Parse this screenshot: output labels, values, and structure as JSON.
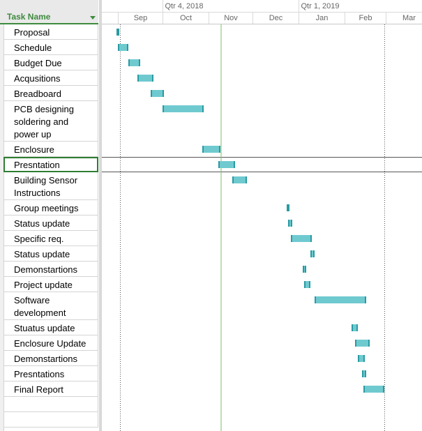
{
  "grid": {
    "header": "Task Name",
    "tasks": [
      {
        "name": "Proposal",
        "lines": 1,
        "start": "2018-08-31",
        "finish": "2018-09-02"
      },
      {
        "name": "Schedule",
        "lines": 1,
        "start": "2018-09-01",
        "finish": "2018-09-08"
      },
      {
        "name": "Budget Due",
        "lines": 1,
        "start": "2018-09-08",
        "finish": "2018-09-16"
      },
      {
        "name": "Acqusitions",
        "lines": 1,
        "start": "2018-09-14",
        "finish": "2018-09-25"
      },
      {
        "name": "Breadboard",
        "lines": 1,
        "start": "2018-09-23",
        "finish": "2018-10-02"
      },
      {
        "name": "PCB designing\nsoldering and\npower up",
        "lines": 3,
        "start": "2018-10-01",
        "finish": "2018-10-29"
      },
      {
        "name": "Enclosure",
        "lines": 1,
        "start": "2018-10-28",
        "finish": "2018-11-09"
      },
      {
        "name": "Presntation",
        "lines": 1,
        "start": "2018-11-08",
        "finish": "2018-11-19",
        "selected": true
      },
      {
        "name": "Building Sensor\nInstructions",
        "lines": 2,
        "start": "2018-11-17",
        "finish": "2018-11-27"
      },
      {
        "name": "Group meetings",
        "lines": 1,
        "start": "2018-12-24",
        "finish": "2018-12-26"
      },
      {
        "name": "Status update",
        "lines": 1,
        "start": "2018-12-25",
        "finish": "2018-12-28"
      },
      {
        "name": "Specific req.",
        "lines": 1,
        "start": "2018-12-27",
        "finish": "2019-01-10"
      },
      {
        "name": "Status update",
        "lines": 1,
        "start": "2019-01-09",
        "finish": "2019-01-12"
      },
      {
        "name": "Demonstartions",
        "lines": 1,
        "start": "2019-01-04",
        "finish": "2019-01-06"
      },
      {
        "name": "Project update",
        "lines": 1,
        "start": "2019-01-05",
        "finish": "2019-01-09"
      },
      {
        "name": "Software\ndevelopment",
        "lines": 2,
        "start": "2019-01-12",
        "finish": "2019-02-16"
      },
      {
        "name": "Stuatus update",
        "lines": 1,
        "start": "2019-02-06",
        "finish": "2019-02-10"
      },
      {
        "name": "Enclosure Update",
        "lines": 1,
        "start": "2019-02-08",
        "finish": "2019-02-18"
      },
      {
        "name": "Demonstartions",
        "lines": 1,
        "start": "2019-02-10",
        "finish": "2019-02-15"
      },
      {
        "name": "Presntations",
        "lines": 1,
        "start": "2019-02-13",
        "finish": "2019-02-16"
      },
      {
        "name": "Final Report",
        "lines": 1,
        "start": "2019-02-14",
        "finish": "2019-02-28"
      }
    ],
    "empty_rows": 2
  },
  "timescale": {
    "quarters": [
      "Qtr 4, 2018",
      "Qtr 1, 2019"
    ],
    "months": [
      "Sep",
      "Oct",
      "Nov",
      "Dec",
      "Jan",
      "Feb",
      "Mar"
    ]
  },
  "colors": {
    "bar_fill": "#6fcad0",
    "bar_edge": "#2a9aa2",
    "accent_green": "#3e8a3e",
    "today_line": "#7bbf6a"
  }
}
